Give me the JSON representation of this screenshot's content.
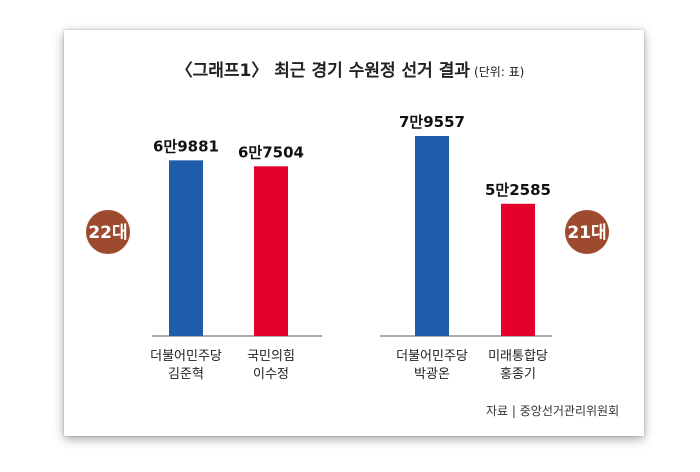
{
  "chart_data": [
    {
      "type": "bar",
      "label": "22대",
      "categories": [
        "더불어민주당\n김준혁",
        "국민의힘\n이수정"
      ],
      "values": [
        69881,
        67504
      ],
      "value_labels": [
        "6만9881",
        "6만7504"
      ],
      "colors": [
        "#1f5dab",
        "#e4002b"
      ]
    },
    {
      "type": "bar",
      "label": "21대",
      "categories": [
        "더불어민주당\n박광온",
        "미래통합당\n홍종기"
      ],
      "values": [
        79557,
        52585
      ],
      "value_labels": [
        "7만9557",
        "5만2585"
      ],
      "colors": [
        "#1f5dab",
        "#e4002b"
      ]
    }
  ],
  "title": "〈그래프1〉 최근 경기 수원정 선거 결과",
  "unit": "(단위: 표)",
  "source": "자료 | 중앙선거관리위원회",
  "colors": {
    "badge": "#9e4a2e",
    "axis": "#555555"
  }
}
